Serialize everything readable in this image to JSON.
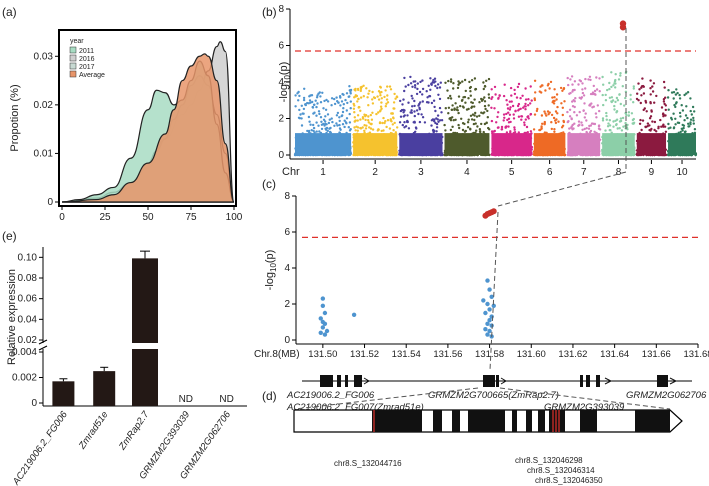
{
  "chart_data": [
    {
      "panel": "(a)",
      "type": "area",
      "ylabel": "Propotion (%)",
      "xlabel": "",
      "xlim": [
        0,
        100
      ],
      "ylim": [
        0,
        0.035
      ],
      "xticks": [
        "0",
        "25",
        "50",
        "75",
        "100"
      ],
      "yticks": [
        "0",
        "0.01",
        "0.02",
        "0.03"
      ],
      "legend": {
        "title": "year",
        "placement": "top-left"
      },
      "series": [
        {
          "name": "2011",
          "color": "#a8dcc3",
          "x": [
            0,
            10,
            20,
            30,
            40,
            50,
            55,
            60,
            65,
            70,
            75,
            80,
            85,
            90,
            95,
            100
          ],
          "y": [
            0,
            0.0005,
            0.0015,
            0.003,
            0.009,
            0.019,
            0.023,
            0.0225,
            0.02,
            0.021,
            0.025,
            0.029,
            0.026,
            0.016,
            0.006,
            0
          ]
        },
        {
          "name": "2016",
          "color": "#cfcfcf",
          "x": [
            0,
            20,
            30,
            40,
            50,
            60,
            70,
            75,
            80,
            85,
            90,
            92,
            95,
            100
          ],
          "y": [
            0,
            0.0005,
            0.001,
            0.003,
            0.007,
            0.013,
            0.018,
            0.02,
            0.023,
            0.027,
            0.032,
            0.033,
            0.031,
            0
          ]
        },
        {
          "name": "2017",
          "color": "#c7d9d2",
          "x": [
            0,
            20,
            30,
            40,
            50,
            55,
            60,
            65,
            70,
            75,
            80,
            85,
            90,
            95,
            100
          ],
          "y": [
            0,
            0.0008,
            0.002,
            0.004,
            0.008,
            0.0105,
            0.013,
            0.017,
            0.02,
            0.024,
            0.026,
            0.024,
            0.018,
            0.01,
            0
          ]
        },
        {
          "name": "Average",
          "color": "#e8956a",
          "x": [
            0,
            20,
            30,
            40,
            50,
            60,
            65,
            70,
            75,
            80,
            83,
            85,
            90,
            95,
            100
          ],
          "y": [
            0,
            0.0005,
            0.0015,
            0.004,
            0.008,
            0.014,
            0.019,
            0.025,
            0.028,
            0.03,
            0.0305,
            0.03,
            0.025,
            0.012,
            0
          ]
        }
      ]
    },
    {
      "panel": "(b)",
      "type": "scatter",
      "ylabel": "-log10(p)",
      "xlabel": "Chr",
      "ylim": [
        0,
        8
      ],
      "yticks": [
        "0",
        "2",
        "4",
        "6",
        "8"
      ],
      "threshold": 5.7,
      "chromosomes": [
        "1",
        "2",
        "3",
        "4",
        "5",
        "6",
        "7",
        "8",
        "9",
        "10"
      ],
      "chr_colors": [
        "#4e94cf",
        "#f5c22e",
        "#4a3fa0",
        "#4e5a2c",
        "#d8278a",
        "#ee6a25",
        "#d67fbf",
        "#8ccfa8",
        "#8b1a3f",
        "#2f7a5a"
      ],
      "chr_sizes": [
        301,
        237,
        232,
        241,
        217,
        169,
        176,
        175,
        157,
        150
      ],
      "chr_peaks": [
        3.8,
        3.8,
        4.3,
        4.2,
        3.9,
        4.1,
        4.5,
        4.6,
        4.2,
        3.6
      ],
      "significant": [
        {
          "chr": "8",
          "pos": 131.58,
          "y": 7.2
        },
        {
          "chr": "8",
          "pos": 131.58,
          "y": 7.0
        }
      ]
    },
    {
      "panel": "(c)",
      "type": "scatter",
      "ylabel": "-log10(p)",
      "xlabel": "Chr.8(MB)",
      "xlim": [
        131.49,
        131.68
      ],
      "ylim": [
        0,
        8
      ],
      "yticks": [
        "0",
        "2",
        "4",
        "6",
        "8"
      ],
      "xticks": [
        "131.50",
        "131.52",
        "131.54",
        "131.56",
        "131.58",
        "131.60",
        "131.62",
        "131.64",
        "131.66",
        "131.68"
      ],
      "threshold": 5.7,
      "points": [
        {
          "x": 131.5,
          "y": 2.3
        },
        {
          "x": 131.5,
          "y": 1.9
        },
        {
          "x": 131.501,
          "y": 1.5
        },
        {
          "x": 131.499,
          "y": 1.2
        },
        {
          "x": 131.501,
          "y": 0.9
        },
        {
          "x": 131.5,
          "y": 0.7
        },
        {
          "x": 131.502,
          "y": 0.5
        },
        {
          "x": 131.499,
          "y": 0.4
        },
        {
          "x": 131.501,
          "y": 0.3
        },
        {
          "x": 131.5,
          "y": 1.0
        },
        {
          "x": 131.515,
          "y": 1.4
        },
        {
          "x": 131.579,
          "y": 3.3
        },
        {
          "x": 131.58,
          "y": 2.8
        },
        {
          "x": 131.581,
          "y": 2.4
        },
        {
          "x": 131.579,
          "y": 2.0
        },
        {
          "x": 131.58,
          "y": 1.7
        },
        {
          "x": 131.578,
          "y": 1.5
        },
        {
          "x": 131.581,
          "y": 1.3
        },
        {
          "x": 131.58,
          "y": 1.1
        },
        {
          "x": 131.579,
          "y": 0.9
        },
        {
          "x": 131.581,
          "y": 0.8
        },
        {
          "x": 131.578,
          "y": 0.6
        },
        {
          "x": 131.58,
          "y": 0.5
        },
        {
          "x": 131.579,
          "y": 0.3
        },
        {
          "x": 131.581,
          "y": 0.2
        },
        {
          "x": 131.582,
          "y": 1.9
        },
        {
          "x": 131.577,
          "y": 2.2
        }
      ],
      "significant": [
        {
          "x": 131.578,
          "y": 6.9
        },
        {
          "x": 131.579,
          "y": 7.0
        },
        {
          "x": 131.58,
          "y": 7.05
        },
        {
          "x": 131.581,
          "y": 7.1
        },
        {
          "x": 131.582,
          "y": 7.15
        }
      ],
      "genes": [
        {
          "name": "AC219006.2_FG006",
          "start": 131.497,
          "end": 131.508
        },
        {
          "name": "AC219006.2_FG007(Zmrad51e)",
          "start": 131.509,
          "end": 131.512
        },
        {
          "name": "GRMZM2G700665(ZmRap2.7)",
          "start": 131.576,
          "end": 131.582
        },
        {
          "name": "GRMZM2G393039",
          "start": 131.612,
          "end": 131.622
        },
        {
          "name": "GRMZM2G062706",
          "start": 131.663,
          "end": 131.668
        }
      ]
    },
    {
      "panel": "(d)",
      "type": "diagram",
      "snps": [
        "chr8.S_132044716",
        "chr8.S_132046298",
        "chr8.S_132046314",
        "chr8.S_132046350"
      ]
    },
    {
      "panel": "(e)",
      "type": "bar",
      "ylabel": "Relative expression",
      "categories": [
        "AC219006.2_FG006",
        "Zmrad51e",
        "ZmRap2.7",
        "GRMZM2G393039",
        "GRMZM2G062706"
      ],
      "values": [
        0.0017,
        0.0025,
        0.099,
        null,
        null
      ],
      "errors": [
        0.0002,
        0.0003,
        0.007,
        null,
        null
      ],
      "value_labels": [
        "",
        "",
        "",
        "ND",
        "ND"
      ],
      "ylim_lower": [
        0,
        0.004
      ],
      "ylim_upper": [
        0.02,
        0.11
      ],
      "yticks_lower": [
        "0",
        "0.002",
        "0.004"
      ],
      "yticks_upper": [
        "0.02",
        "0.04",
        "0.06",
        "0.08",
        "0.10"
      ],
      "bar_color": "#231815"
    }
  ]
}
